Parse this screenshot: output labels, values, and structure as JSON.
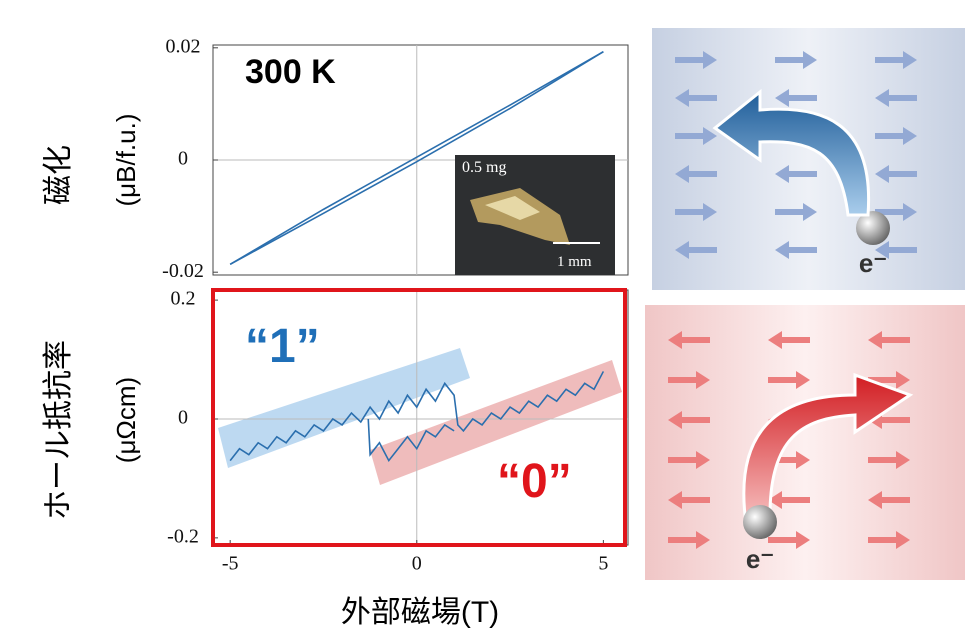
{
  "chart_data": [
    {
      "type": "line",
      "annotation": "300 K",
      "ylabel": "磁化",
      "ylabel_unit": "(μB/f.u.)",
      "inset_labels": [
        "0.5 mg",
        "1 mm"
      ],
      "xlim": [
        -5.46,
        5.66
      ],
      "ylim": [
        -0.0205,
        0.0205
      ],
      "yticks": [
        0.02,
        0,
        -0.02
      ],
      "grid_x": [
        0
      ],
      "grid_y": [
        0
      ],
      "series": [
        {
          "color": "#2b6fae",
          "x": [
            -5,
            -2.5,
            0,
            2.5,
            5
          ],
          "values": [
            -0.0186,
            -0.0095,
            -0.0003,
            0.0092,
            0.0193
          ]
        },
        {
          "color": "#2b6fae",
          "x": [
            -5,
            -2.5,
            0,
            2.5,
            5
          ],
          "values": [
            -0.0186,
            -0.0088,
            0.0005,
            0.0098,
            0.0193
          ]
        }
      ]
    },
    {
      "type": "line",
      "annotations": [
        "“1”",
        "“0”"
      ],
      "ylabel": "ホール抵抗率",
      "ylabel_unit": "(μΩcm)",
      "xlabel": "外部磁場(T)",
      "xlim": [
        -5.46,
        5.66
      ],
      "ylim": [
        -0.212,
        0.217
      ],
      "xticks": [
        -5,
        0,
        5
      ],
      "yticks": [
        0.2,
        0,
        -0.2
      ],
      "grid_x": [
        0
      ],
      "grid_y": [
        0
      ],
      "series": [
        {
          "color": "#2b6fae",
          "x": [
            -5,
            -4.75,
            -4.5,
            -4.25,
            -4,
            -3.75,
            -3.5,
            -3.25,
            -3,
            -2.75,
            -2.5,
            -2.25,
            -2,
            -1.75,
            -1.5,
            -1.25,
            -1,
            -0.75,
            -0.5,
            -0.25,
            0,
            0.25,
            0.5,
            0.75,
            1,
            1.1,
            1.25,
            1.5,
            1.75,
            2,
            2.25,
            2.5,
            2.75,
            3,
            3.25,
            3.5,
            3.75,
            4,
            4.25,
            4.5,
            4.75,
            5
          ],
          "values": [
            -0.07,
            -0.05,
            -0.06,
            -0.04,
            -0.05,
            -0.03,
            -0.04,
            -0.02,
            -0.03,
            -0.01,
            -0.02,
            0.0,
            -0.01,
            0.01,
            -0.005,
            0.02,
            0.0,
            0.03,
            0.01,
            0.04,
            0.02,
            0.05,
            0.03,
            0.06,
            0.04,
            -0.01,
            -0.02,
            0.0,
            -0.01,
            0.01,
            0.0,
            0.02,
            0.01,
            0.03,
            0.02,
            0.04,
            0.03,
            0.05,
            0.04,
            0.06,
            0.05,
            0.08
          ]
        },
        {
          "color": "#2b6fae",
          "x": [
            -1.3,
            -1.25,
            -1,
            -0.75,
            -0.5,
            -0.25,
            0,
            0.25,
            0.5,
            0.75,
            1
          ],
          "values": [
            0.0,
            -0.06,
            -0.04,
            -0.07,
            -0.05,
            -0.03,
            -0.05,
            -0.02,
            -0.03,
            -0.01,
            -0.02
          ]
        }
      ]
    }
  ],
  "panels": {
    "electron_labels": [
      "e⁻",
      "e⁻"
    ]
  }
}
